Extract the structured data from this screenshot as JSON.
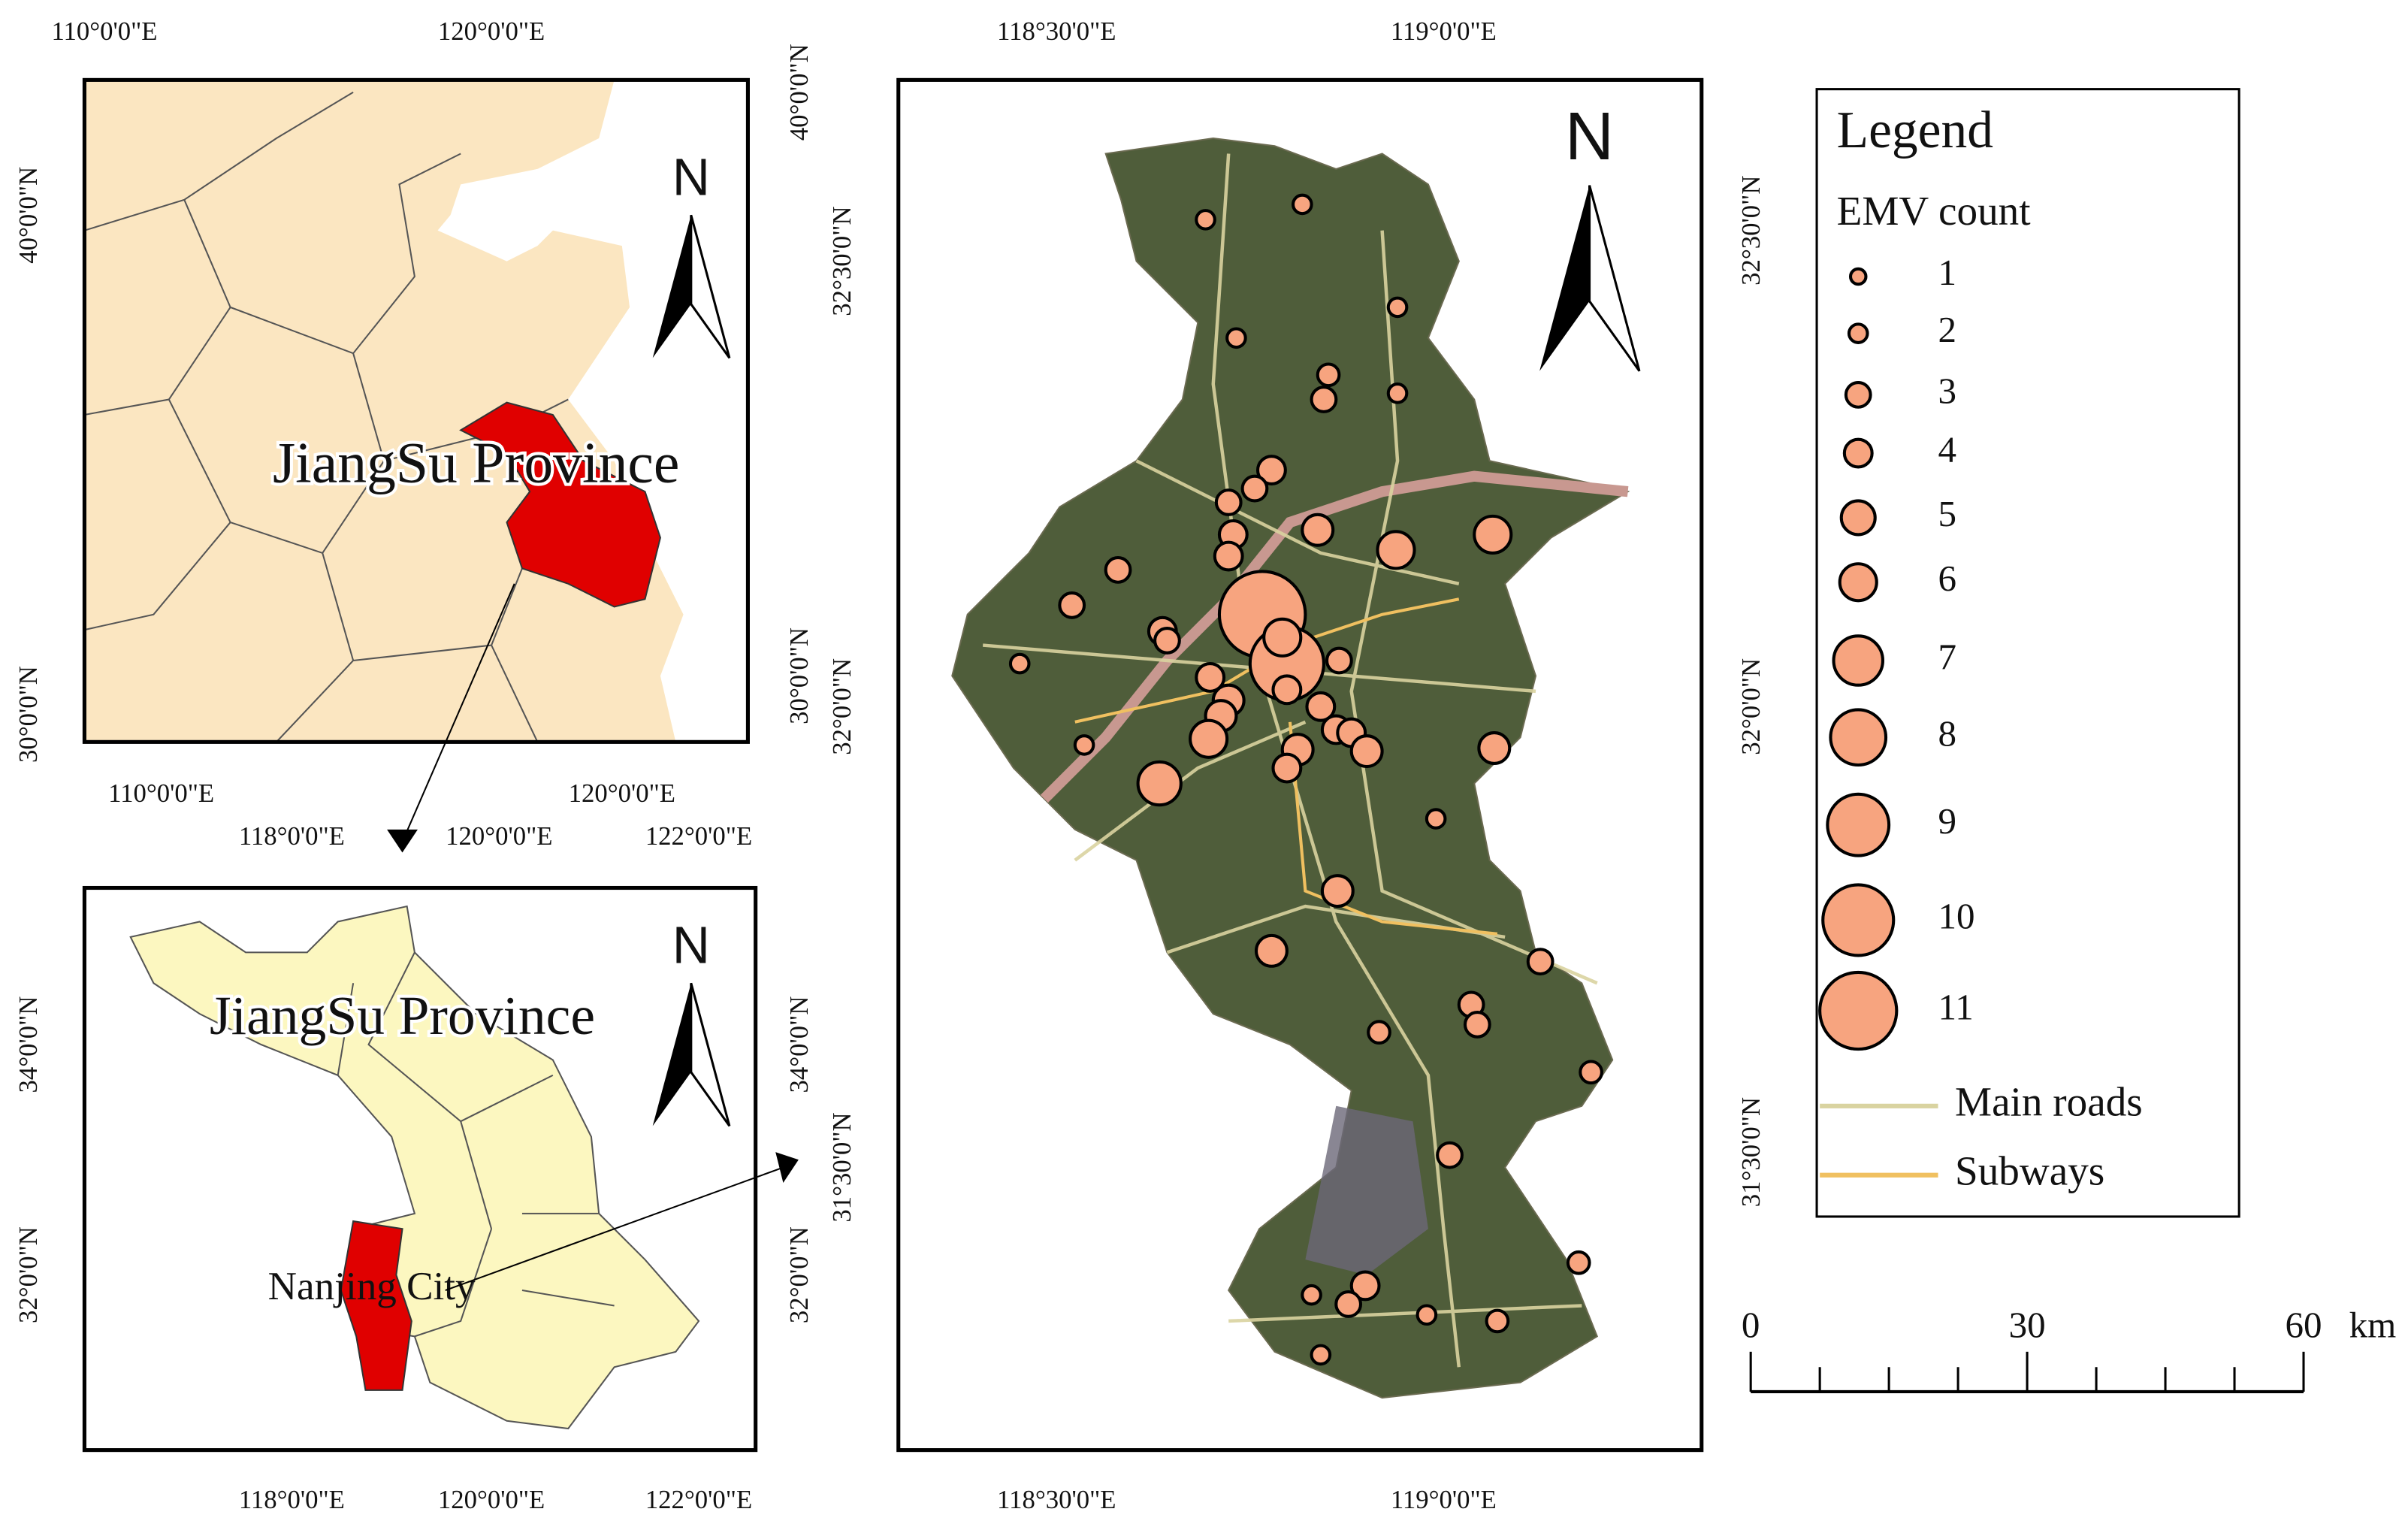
{
  "overview_map": {
    "top_ticks": [
      "110°0'0\"E",
      "120°0'0\"E"
    ],
    "bottom_ticks": [
      "110°0'0\"E",
      "120°0'0\"E"
    ],
    "left_ticks": [
      "40°0'0\"N",
      "30°0'0\"N"
    ],
    "right_ticks": [
      "40°0'0\"N",
      "30°0'0\"N"
    ],
    "label": "JiangSu Province",
    "north": "N"
  },
  "province_map": {
    "top_ticks": [
      "118°0'0\"E",
      "120°0'0\"E",
      "122°0'0\"E"
    ],
    "bottom_ticks": [
      "118°0'0\"E",
      "120°0'0\"E",
      "122°0'0\"E"
    ],
    "left_ticks": [
      "34°0'0\"N",
      "32°0'0\"N"
    ],
    "right_ticks": [
      "34°0'0\"N",
      "32°0'0\"N"
    ],
    "label": "JiangSu Province",
    "city_label": "Nanjing City",
    "north": "N"
  },
  "city_map": {
    "top_ticks": [
      "118°30'0\"E",
      "119°0'0\"E"
    ],
    "bottom_ticks": [
      "118°30'0\"E",
      "119°0'0\"E"
    ],
    "left_ticks": [
      "32°30'0\"N",
      "32°0'0\"N",
      "31°30'0\"N"
    ],
    "right_ticks": [
      "32°30'0\"N",
      "32°0'0\"N",
      "31°30'0\"N"
    ],
    "north": "N"
  },
  "legend": {
    "title": "Legend",
    "subtitle": "EMV count",
    "emv_items": [
      1,
      2,
      3,
      4,
      5,
      6,
      7,
      8,
      9,
      10,
      11
    ],
    "lines": [
      "Main roads",
      "Subways"
    ]
  },
  "scale_bar": {
    "ticks": [
      0,
      30,
      60
    ],
    "unit": "km"
  }
}
